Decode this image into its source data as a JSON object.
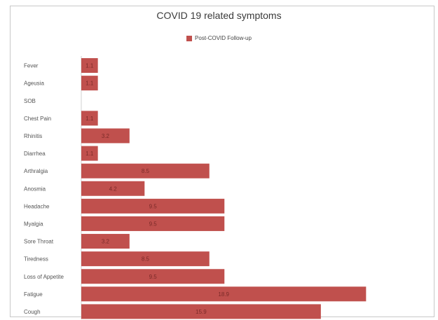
{
  "chart_data": {
    "type": "bar",
    "orientation": "horizontal",
    "title": "COVID 19 related symptoms",
    "legend_position": "top",
    "grid": false,
    "series": [
      {
        "name": "Post-COVID Follow-up",
        "color": "#c0504d",
        "values": [
          1.1,
          1.1,
          0,
          1.1,
          3.2,
          1.1,
          8.5,
          4.2,
          9.5,
          9.5,
          3.2,
          8.5,
          9.5,
          18.9,
          15.9
        ]
      }
    ],
    "categories": [
      "Fever",
      "Ageusia",
      "SOB",
      "Chest Pain",
      "Rhinitis",
      "Diarrhea",
      "Arthralgia",
      "Anosmia",
      "Headache",
      "Myalgia",
      "Sore Throat",
      "Tiredness",
      "Loss of Appetite",
      "Fatigue",
      "Cough"
    ],
    "xlim": [
      0,
      20
    ]
  }
}
